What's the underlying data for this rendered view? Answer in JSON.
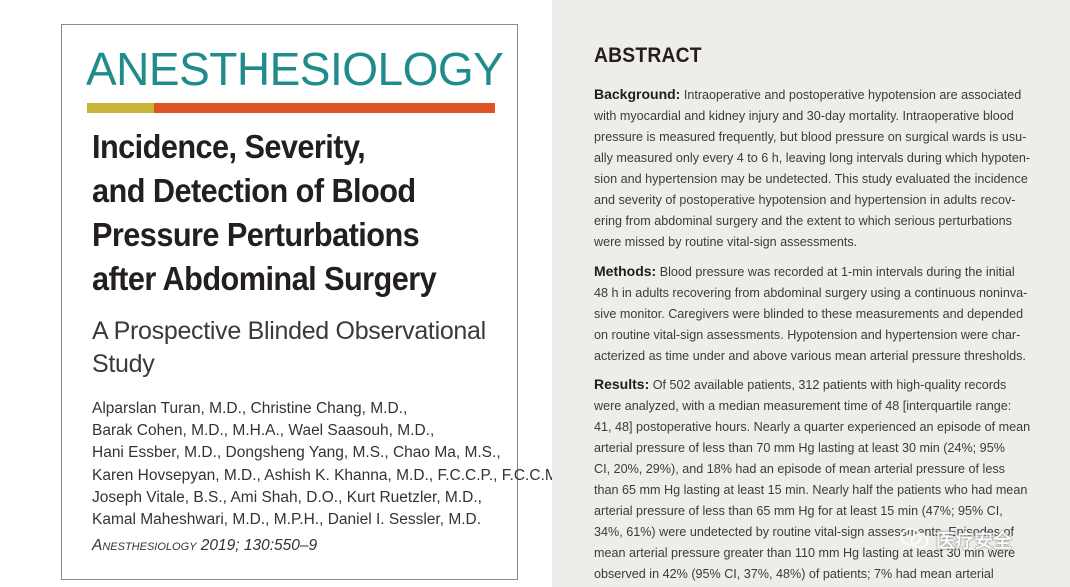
{
  "journal": {
    "name": "ANESTHESIOLOGY",
    "bar_colors": {
      "left": "#c9b43a",
      "right": "#df5427"
    },
    "name_color": "#1f8c8b"
  },
  "article": {
    "title_lines": [
      "Incidence, Severity,",
      "and Detection of Blood",
      "Pressure Perturbations",
      "after Abdominal Surgery"
    ],
    "subtitle_lines": [
      "A Prospective Blinded Observational",
      "Study"
    ],
    "author_lines": [
      "Alparslan Turan, M.D., Christine Chang, M.D.,",
      "Barak Cohen, M.D., M.H.A., Wael Saasouh, M.D.,",
      "Hani Essber, M.D., Dongsheng Yang, M.S., Chao Ma, M.S.,",
      "Karen Hovsepyan, M.D., Ashish K. Khanna, M.D., F.C.C.P., F.C.C.M.,",
      "Joseph Vitale, B.S., Ami Shah, D.O., Kurt Ruetzler, M.D.,",
      "Kamal Maheshwari, M.D., M.P.H., Daniel I. Sessler, M.D."
    ],
    "citation": {
      "journal": "Anesthesiology",
      "details": " 2019; 130:550–9"
    }
  },
  "abstract": {
    "heading": "ABSTRACT",
    "background": {
      "label": "Background:",
      "lines": [
        " Intraoperative and postoperative hypotension are associated",
        "with myocardial and kidney injury and 30-day mortality. Intraoperative blood",
        "pressure is measured frequently, but blood pressure on surgical wards is usu-",
        "ally measured only every 4 to 6 h, leaving long intervals during which hypoten-",
        "sion and hypertension may be undetected. This study evaluated the incidence",
        "and severity of postoperative hypotension and hypertension in adults recov-",
        "ering from abdominal surgery and the extent to which serious perturbations",
        "were missed by routine vital-sign assessments."
      ]
    },
    "methods": {
      "label": "Methods:",
      "lines": [
        " Blood pressure was recorded at 1-min intervals during the initial",
        "48 h in adults recovering from abdominal surgery using a continuous noninva-",
        "sive monitor. Caregivers were blinded to these measurements and depended",
        "on routine vital-sign assessments. Hypotension and hypertension were char-",
        "acterized as time under and above various mean arterial pressure thresholds."
      ]
    },
    "results": {
      "label": "Results:",
      "lines": [
        " Of 502 available patients, 312 patients with high-quality records",
        "were analyzed, with a median measurement time of 48 [interquartile range:",
        "41, 48] postoperative hours. Nearly a quarter experienced an episode of mean",
        "arterial pressure of less than 70 mm Hg lasting at least 30 min (24%; 95%",
        "CI, 20%, 29%), and 18% had an episode of mean arterial pressure of less",
        "than 65 mm Hg lasting at least 15 min. Nearly half the patients who had mean",
        "arterial pressure of less than 65 mm Hg for at least 15 min (47%; 95% CI,",
        "34%, 61%) were undetected by routine vital-sign assessments. Episodes of",
        "mean arterial pressure greater than 110 mm Hg lasting at least 30 min were",
        "observed in 42% (95% CI, 37%, 48%) of patients; 7% had mean arterial"
      ]
    }
  },
  "watermark": {
    "text": "医疗安全"
  }
}
